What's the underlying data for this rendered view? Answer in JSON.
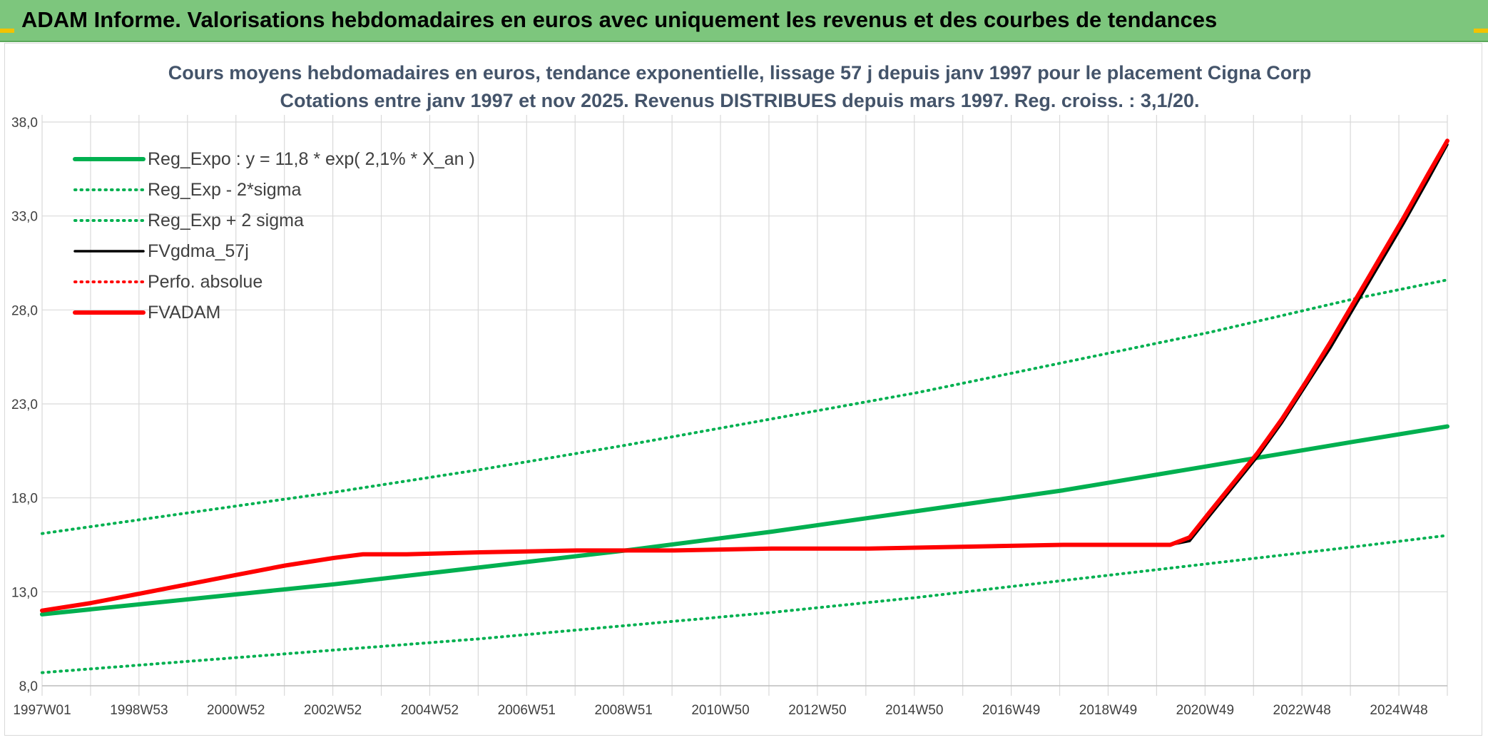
{
  "banner": {
    "title": "ADAM Informe. Valorisations hebdomadaires en euros avec uniquement les revenus et des courbes de tendances"
  },
  "colors": {
    "banner_bg": "#7dc67d",
    "trend_green": "#00b050",
    "black": "#000000",
    "red": "#ff0000",
    "grid": "#d9d9d9"
  },
  "chart_data": {
    "type": "line",
    "title": "Cours moyens hebdomadaires en euros, tendance exponentielle, lissage 57 j depuis janv 1997 pour le placement Cigna Corp",
    "subtitle": "Cotations entre janv 1997 et nov 2025. Revenus DISTRIBUES depuis mars 1997. Reg. croiss. : 3,1/20.",
    "xlabel": "",
    "ylabel": "",
    "ylim": [
      8.0,
      38.0
    ],
    "yticks": [
      "8,0",
      "13,0",
      "18,0",
      "23,0",
      "28,0",
      "33,0",
      "38,0"
    ],
    "x_tick_labels": [
      "1997W01",
      "1998W53",
      "2000W52",
      "2002W52",
      "2004W52",
      "2006W51",
      "2008W51",
      "2010W50",
      "2012W50",
      "2014W50",
      "2016W49",
      "2018W49",
      "2020W49",
      "2022W48",
      "2024W48"
    ],
    "x_range_years": [
      1997.0,
      2025.9
    ],
    "grid": true,
    "legend_position": "top-left",
    "series": [
      {
        "name": "Reg_Expo : y = 11,8 * exp( 2,1% *  X_an )",
        "style": "solid",
        "color": "#00b050",
        "x": [
          1997.0,
          2000.0,
          2003.0,
          2006.0,
          2009.0,
          2012.0,
          2015.0,
          2018.0,
          2021.0,
          2024.0,
          2025.9
        ],
        "values": [
          11.8,
          12.6,
          13.4,
          14.3,
          15.2,
          16.2,
          17.3,
          18.4,
          19.7,
          21.0,
          21.8
        ]
      },
      {
        "name": "Reg_Exp - 2*sigma",
        "style": "dotted",
        "color": "#00b050",
        "x": [
          1997.0,
          2000.0,
          2003.0,
          2006.0,
          2009.0,
          2012.0,
          2015.0,
          2018.0,
          2021.0,
          2024.0,
          2025.9
        ],
        "values": [
          8.7,
          9.3,
          9.9,
          10.5,
          11.2,
          11.9,
          12.7,
          13.6,
          14.5,
          15.4,
          16.0
        ]
      },
      {
        "name": "Reg_Exp + 2 sigma",
        "style": "dotted",
        "color": "#00b050",
        "x": [
          1997.0,
          2000.0,
          2003.0,
          2006.0,
          2009.0,
          2012.0,
          2015.0,
          2018.0,
          2021.0,
          2024.0,
          2025.9
        ],
        "values": [
          16.1,
          17.2,
          18.3,
          19.5,
          20.8,
          22.2,
          23.6,
          25.2,
          26.8,
          28.6,
          29.6
        ]
      },
      {
        "name": "FVgdma_57j",
        "style": "solid",
        "color": "#000000",
        "x": [
          1997.0,
          1998.0,
          1999.0,
          2000.0,
          2001.0,
          2002.0,
          2003.0,
          2003.6,
          2004.5,
          2006.0,
          2008.0,
          2010.0,
          2012.0,
          2014.0,
          2016.0,
          2018.0,
          2020.2,
          2020.6,
          2021.0,
          2021.5,
          2022.0,
          2022.5,
          2023.0,
          2023.5,
          2024.0,
          2024.5,
          2025.0,
          2025.5,
          2025.9
        ],
        "values": [
          12.0,
          12.4,
          12.9,
          13.4,
          13.9,
          14.4,
          14.8,
          15.0,
          15.0,
          15.1,
          15.2,
          15.2,
          15.3,
          15.3,
          15.4,
          15.5,
          15.5,
          15.7,
          17.0,
          18.6,
          20.2,
          22.0,
          24.0,
          26.0,
          28.2,
          30.4,
          32.6,
          34.9,
          36.8
        ]
      },
      {
        "name": "Perfo. absolue",
        "style": "dotted",
        "color": "#ff0000",
        "x": [],
        "values": []
      },
      {
        "name": "FVADAM",
        "style": "solid",
        "color": "#ff0000",
        "x": [
          1997.0,
          1998.0,
          1999.0,
          2000.0,
          2001.0,
          2002.0,
          2003.0,
          2003.6,
          2004.5,
          2006.0,
          2008.0,
          2010.0,
          2012.0,
          2014.0,
          2016.0,
          2018.0,
          2020.2,
          2020.6,
          2021.0,
          2021.5,
          2022.0,
          2022.5,
          2023.0,
          2023.5,
          2024.0,
          2024.5,
          2025.0,
          2025.5,
          2025.9
        ],
        "values": [
          12.0,
          12.4,
          12.9,
          13.4,
          13.9,
          14.4,
          14.8,
          15.0,
          15.0,
          15.1,
          15.2,
          15.2,
          15.3,
          15.3,
          15.4,
          15.5,
          15.5,
          15.9,
          17.2,
          18.8,
          20.4,
          22.2,
          24.2,
          26.3,
          28.5,
          30.7,
          32.9,
          35.2,
          37.0
        ]
      }
    ]
  }
}
